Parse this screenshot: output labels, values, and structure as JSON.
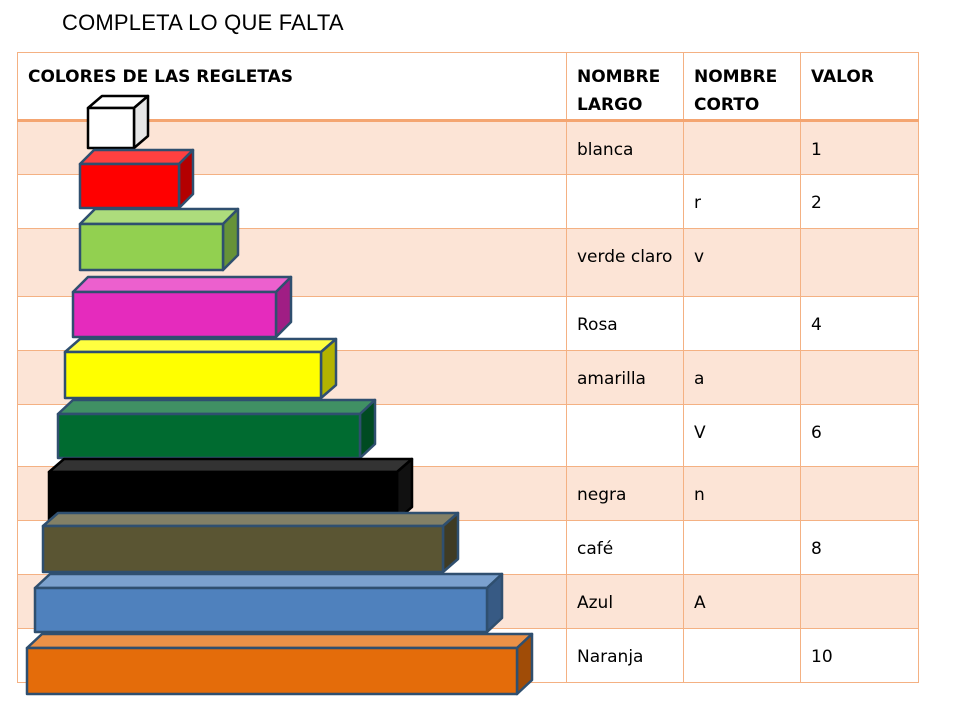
{
  "title": "COMPLETA LO QUE FALTA",
  "headers": {
    "colores": "COLORES DE LAS REGLETAS",
    "nombre_largo": "NOMBRE LARGO",
    "nombre_corto": "NOMBRE CORTO",
    "valor": "VALOR"
  },
  "rows": [
    {
      "largo": "blanca",
      "corto": "",
      "valor": "1",
      "color": "#ffffff"
    },
    {
      "largo": "",
      "corto": "r",
      "valor": "2",
      "color": "#ff0000"
    },
    {
      "largo": "verde claro",
      "corto": "v",
      "valor": "",
      "color": "#92d050"
    },
    {
      "largo": "Rosa",
      "corto": "",
      "valor": "4",
      "color": "#e52bbd"
    },
    {
      "largo": "amarilla",
      "corto": "a",
      "valor": "",
      "color": "#ffff00"
    },
    {
      "largo": "",
      "corto": "V",
      "valor": "6",
      "color": "#006b30"
    },
    {
      "largo": "negra",
      "corto": "n",
      "valor": "",
      "color": "#000000"
    },
    {
      "largo": "café",
      "corto": "",
      "valor": "8",
      "color": "#5a5533"
    },
    {
      "largo": "Azul",
      "corto": "A",
      "valor": "",
      "color": "#4f81bd"
    },
    {
      "largo": "Naranja",
      "corto": "",
      "valor": "10",
      "color": "#e46c0a"
    }
  ]
}
